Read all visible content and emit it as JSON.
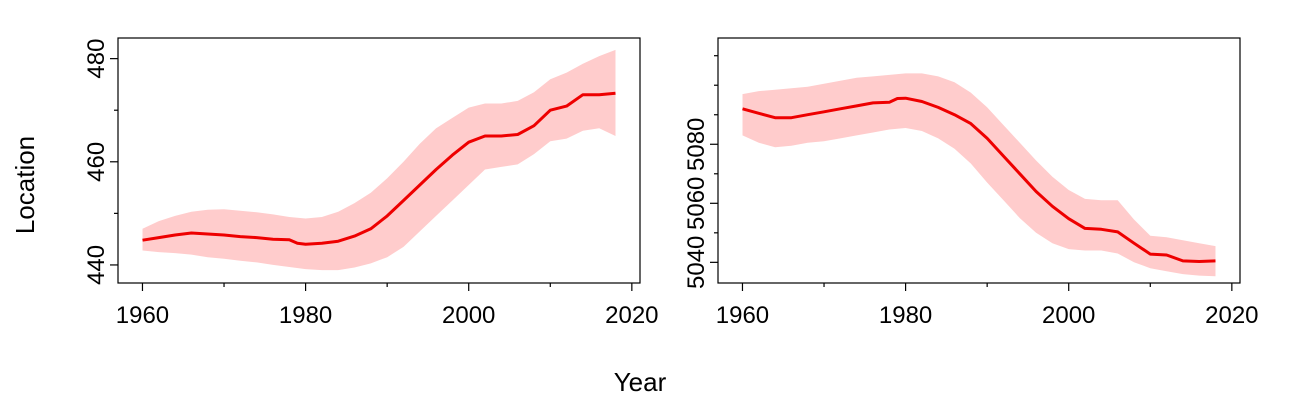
{
  "figure": {
    "shared_xlabel": "Year",
    "shared_ylabel": "Location"
  },
  "chart_data": [
    {
      "type": "line",
      "title": "",
      "xlabel": "Year",
      "ylabel": "Location",
      "xlim": [
        1957,
        2021
      ],
      "ylim": [
        436.5,
        484
      ],
      "xticks": [
        1960,
        1980,
        2000,
        2020
      ],
      "xtick_labels": [
        "1960",
        "1980",
        "2000",
        "2020"
      ],
      "xminor": [
        1970,
        1990,
        2010
      ],
      "yticks": [
        440,
        460,
        480
      ],
      "ytick_labels": [
        "440",
        "460",
        "480"
      ],
      "yminor": [
        450,
        470
      ],
      "line_color": "#ee0000",
      "band_color": "#ffcccc",
      "series": [
        {
          "name": "mean",
          "x": [
            1960,
            1962,
            1964,
            1966,
            1968,
            1970,
            1972,
            1974,
            1976,
            1978,
            1979,
            1980,
            1982,
            1984,
            1986,
            1988,
            1990,
            1992,
            1994,
            1996,
            1998,
            2000,
            2002,
            2004,
            2006,
            2008,
            2010,
            2012,
            2014,
            2016,
            2018
          ],
          "y": [
            444.8,
            445.3,
            445.8,
            446.2,
            446.0,
            445.8,
            445.5,
            445.3,
            445.0,
            444.9,
            444.2,
            444.0,
            444.2,
            444.6,
            445.6,
            447.0,
            449.5,
            452.5,
            455.5,
            458.5,
            461.3,
            463.8,
            465.0,
            465.0,
            465.3,
            467.0,
            470.0,
            470.8,
            473.0,
            473.0,
            473.3
          ]
        },
        {
          "name": "lower",
          "x": [
            1960,
            1962,
            1964,
            1966,
            1968,
            1970,
            1972,
            1974,
            1976,
            1978,
            1980,
            1982,
            1984,
            1986,
            1988,
            1990,
            1992,
            1994,
            1996,
            1998,
            2000,
            2002,
            2004,
            2006,
            2008,
            2010,
            2012,
            2014,
            2016,
            2018
          ],
          "y": [
            442.8,
            442.5,
            442.3,
            442.0,
            441.5,
            441.2,
            440.8,
            440.5,
            440.0,
            439.6,
            439.2,
            439.0,
            439.0,
            439.5,
            440.3,
            441.5,
            443.5,
            446.5,
            449.5,
            452.5,
            455.5,
            458.5,
            459.0,
            459.5,
            461.5,
            464.0,
            464.5,
            466.0,
            466.5,
            465.0
          ]
        },
        {
          "name": "upper",
          "x": [
            1960,
            1962,
            1964,
            1966,
            1968,
            1970,
            1972,
            1974,
            1976,
            1978,
            1980,
            1982,
            1984,
            1986,
            1988,
            1990,
            1992,
            1994,
            1996,
            1998,
            2000,
            2002,
            2004,
            2006,
            2008,
            2010,
            2012,
            2014,
            2016,
            2018
          ],
          "y": [
            447.0,
            448.5,
            449.5,
            450.3,
            450.7,
            450.8,
            450.5,
            450.2,
            449.8,
            449.3,
            449.0,
            449.3,
            450.3,
            452.0,
            454.0,
            456.8,
            460.0,
            463.5,
            466.5,
            468.5,
            470.5,
            471.3,
            471.3,
            471.8,
            473.5,
            476.0,
            477.3,
            479.0,
            480.5,
            481.7
          ]
        }
      ]
    },
    {
      "type": "line",
      "title": "",
      "xlabel": "Year",
      "ylabel": "",
      "xlim": [
        1957,
        2021
      ],
      "ylim": [
        5033,
        5116
      ],
      "xticks": [
        1960,
        1980,
        2000,
        2020
      ],
      "xtick_labels": [
        "1960",
        "1980",
        "2000",
        "2020"
      ],
      "xminor": [
        1970,
        1990,
        2010
      ],
      "yticks": [
        5040,
        5060,
        5080
      ],
      "ytick_labels": [
        "5040",
        "5060",
        "5080"
      ],
      "yminor": [
        5050,
        5070,
        5090,
        5100,
        5110
      ],
      "line_color": "#ee0000",
      "band_color": "#ffcccc",
      "series": [
        {
          "name": "mean",
          "x": [
            1960,
            1962,
            1964,
            1966,
            1968,
            1970,
            1972,
            1974,
            1976,
            1978,
            1979,
            1980,
            1982,
            1984,
            1986,
            1988,
            1990,
            1992,
            1994,
            1996,
            1998,
            2000,
            2002,
            2004,
            2006,
            2008,
            2010,
            2012,
            2014,
            2016,
            2018
          ],
          "y": [
            5092.0,
            5090.5,
            5089.0,
            5089.0,
            5090.0,
            5091.0,
            5092.0,
            5093.0,
            5094.0,
            5094.2,
            5095.5,
            5095.6,
            5094.5,
            5092.5,
            5090.0,
            5087.0,
            5082.0,
            5076.0,
            5070.0,
            5064.0,
            5059.0,
            5054.8,
            5051.5,
            5051.2,
            5050.3,
            5046.5,
            5042.8,
            5042.5,
            5040.5,
            5040.3,
            5040.5
          ]
        },
        {
          "name": "lower",
          "x": [
            1960,
            1962,
            1964,
            1966,
            1968,
            1970,
            1972,
            1974,
            1976,
            1978,
            1980,
            1982,
            1984,
            1986,
            1988,
            1990,
            1992,
            1994,
            1996,
            1998,
            2000,
            2002,
            2004,
            2006,
            2008,
            2010,
            2012,
            2014,
            2016,
            2018
          ],
          "y": [
            5083.0,
            5080.5,
            5079.0,
            5079.5,
            5080.5,
            5081.0,
            5082.0,
            5083.0,
            5084.0,
            5085.0,
            5085.5,
            5084.5,
            5082.0,
            5078.5,
            5073.5,
            5067.0,
            5061.0,
            5055.0,
            5050.0,
            5046.5,
            5044.5,
            5044.0,
            5044.0,
            5043.0,
            5040.0,
            5038.0,
            5037.0,
            5036.0,
            5035.5,
            5035.3
          ]
        },
        {
          "name": "upper",
          "x": [
            1960,
            1962,
            1964,
            1966,
            1968,
            1970,
            1972,
            1974,
            1976,
            1978,
            1980,
            1982,
            1984,
            1986,
            1988,
            1990,
            1992,
            1994,
            1996,
            1998,
            2000,
            2002,
            2004,
            2006,
            2008,
            2010,
            2012,
            2014,
            2016,
            2018
          ],
          "y": [
            5097.0,
            5098.0,
            5098.5,
            5099.0,
            5099.5,
            5100.5,
            5101.5,
            5102.5,
            5103.0,
            5103.5,
            5104.0,
            5104.0,
            5103.0,
            5101.0,
            5097.5,
            5092.5,
            5086.5,
            5080.5,
            5074.5,
            5069.0,
            5064.5,
            5061.5,
            5061.0,
            5061.0,
            5054.5,
            5049.0,
            5048.5,
            5047.5,
            5046.5,
            5045.5
          ]
        }
      ]
    }
  ]
}
